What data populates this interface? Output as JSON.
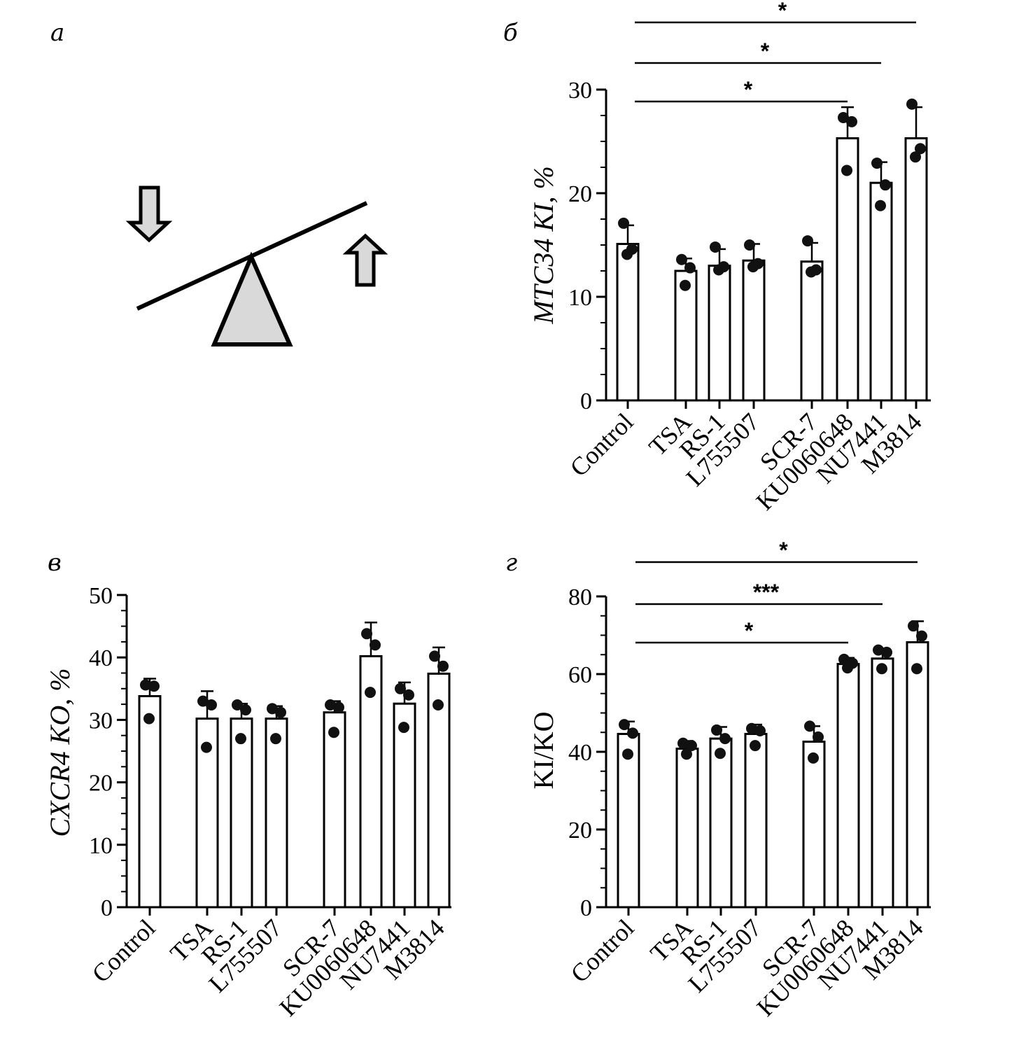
{
  "panel_letters": {
    "a": "а",
    "b": "б",
    "c": "в",
    "d": "г"
  },
  "chart_data": [
    {
      "panel": "б",
      "type": "bar",
      "ylabel": "MTC34 KI, %",
      "ylim": [
        0,
        30
      ],
      "yticks": [
        0,
        10,
        20,
        30
      ],
      "categories": [
        "Control",
        "TSA",
        "RS-1",
        "L755507",
        "SCR-7",
        "KU0060648",
        "NU7441",
        "M3814"
      ],
      "values": [
        15.1,
        12.5,
        13.0,
        13.5,
        13.4,
        25.3,
        21.0,
        25.3
      ],
      "errors": [
        1.8,
        1.2,
        1.6,
        1.6,
        1.8,
        3.0,
        2.0,
        3.0
      ],
      "points": [
        [
          17.1,
          14.6,
          14.1
        ],
        [
          13.6,
          12.8,
          11.1
        ],
        [
          14.8,
          12.9,
          12.6
        ],
        [
          15.0,
          13.2,
          12.9
        ],
        [
          15.4,
          12.6,
          12.4
        ],
        [
          27.3,
          26.9,
          22.2
        ],
        [
          22.9,
          20.8,
          18.8
        ],
        [
          28.6,
          24.3,
          23.5
        ]
      ],
      "significance": [
        {
          "from": "Control",
          "to": "KU0060648",
          "label": "*"
        },
        {
          "from": "Control",
          "to": "NU7441",
          "label": "*"
        },
        {
          "from": "Control",
          "to": "M3814",
          "label": "*"
        }
      ]
    },
    {
      "panel": "в",
      "type": "bar",
      "ylabel": "CXCR4 KO, %",
      "ylim": [
        0,
        50
      ],
      "yticks": [
        0,
        10,
        20,
        30,
        40,
        50
      ],
      "categories": [
        "Control",
        "TSA",
        "RS-1",
        "L755507",
        "SCR-7",
        "KU0060648",
        "NU7441",
        "M3814"
      ],
      "values": [
        33.8,
        30.2,
        30.2,
        30.2,
        31.2,
        40.2,
        32.6,
        37.4
      ],
      "errors": [
        2.8,
        4.4,
        2.4,
        2.0,
        1.8,
        5.4,
        3.4,
        4.2
      ],
      "points": [
        [
          35.6,
          35.4,
          30.2
        ],
        [
          33.0,
          32.4,
          25.6
        ],
        [
          32.4,
          31.6,
          27.0
        ],
        [
          31.8,
          31.2,
          27.0
        ],
        [
          32.4,
          32.0,
          28.0
        ],
        [
          43.8,
          42.0,
          34.4
        ],
        [
          35.0,
          34.0,
          28.8
        ],
        [
          40.2,
          38.6,
          32.4
        ]
      ],
      "significance": []
    },
    {
      "panel": "г",
      "type": "bar",
      "ylabel": "KI/KO",
      "ylim": [
        0,
        80
      ],
      "yticks": [
        0,
        20,
        40,
        60,
        80
      ],
      "categories": [
        "Control",
        "TSA",
        "RS-1",
        "L755507",
        "SCR-7",
        "KU0060648",
        "NU7441",
        "M3814"
      ],
      "values": [
        44.6,
        40.8,
        43.4,
        44.6,
        42.6,
        62.6,
        64.0,
        68.2
      ],
      "errors": [
        3.2,
        2.0,
        3.0,
        2.4,
        4.0,
        1.6,
        2.6,
        5.4
      ],
      "points": [
        [
          47.0,
          44.8,
          39.4
        ],
        [
          42.2,
          41.6,
          39.4
        ],
        [
          45.6,
          43.4,
          39.6
        ],
        [
          46.0,
          45.4,
          41.6
        ],
        [
          46.6,
          43.8,
          38.4
        ],
        [
          63.8,
          62.8,
          61.6
        ],
        [
          66.2,
          65.6,
          61.4
        ],
        [
          72.4,
          69.8,
          61.4
        ]
      ],
      "significance": [
        {
          "from": "Control",
          "to": "KU0060648",
          "label": "*"
        },
        {
          "from": "Control",
          "to": "NU7441",
          "label": "***"
        },
        {
          "from": "Control",
          "to": "M3814",
          "label": "*"
        }
      ]
    }
  ]
}
